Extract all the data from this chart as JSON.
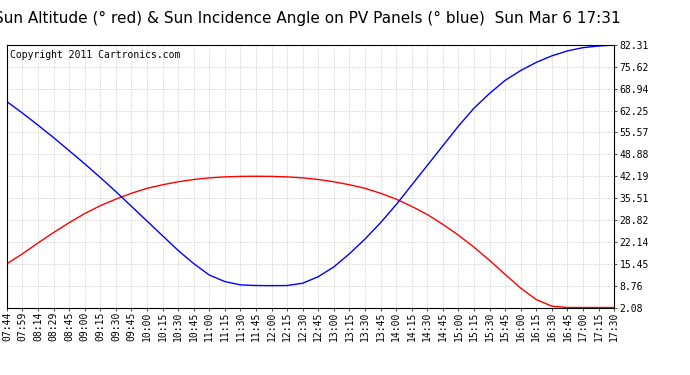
{
  "title": "Sun Altitude (° red) & Sun Incidence Angle on PV Panels (° blue)  Sun Mar 6 17:31",
  "copyright": "Copyright 2011 Cartronics.com",
  "yticks": [
    2.08,
    8.76,
    15.45,
    22.14,
    28.82,
    35.51,
    42.19,
    48.88,
    55.57,
    62.25,
    68.94,
    75.62,
    82.31
  ],
  "xtick_labels": [
    "07:44",
    "07:59",
    "08:14",
    "08:29",
    "08:45",
    "09:00",
    "09:15",
    "09:30",
    "09:45",
    "10:00",
    "10:15",
    "10:30",
    "10:45",
    "11:00",
    "11:15",
    "11:30",
    "11:45",
    "12:00",
    "12:15",
    "12:30",
    "12:45",
    "13:00",
    "13:15",
    "13:30",
    "13:45",
    "14:00",
    "14:15",
    "14:30",
    "14:45",
    "15:00",
    "15:15",
    "15:30",
    "15:45",
    "16:00",
    "16:15",
    "16:30",
    "16:45",
    "17:00",
    "17:15",
    "17:30"
  ],
  "bg_color": "#ffffff",
  "grid_color": "#c8c8c8",
  "red_color": "#ff0000",
  "blue_color": "#0000ff",
  "title_fontsize": 11,
  "copyright_fontsize": 7,
  "tick_fontsize": 7,
  "red_data": [
    15.45,
    18.5,
    21.8,
    25.0,
    28.0,
    30.8,
    33.2,
    35.2,
    37.0,
    38.5,
    39.6,
    40.5,
    41.2,
    41.7,
    42.0,
    42.15,
    42.19,
    42.15,
    42.0,
    41.7,
    41.2,
    40.5,
    39.6,
    38.5,
    37.0,
    35.2,
    33.0,
    30.5,
    27.5,
    24.2,
    20.5,
    16.5,
    12.2,
    8.0,
    4.5,
    2.5,
    2.08,
    2.08,
    2.08,
    2.08
  ],
  "blue_data": [
    65.0,
    61.5,
    57.8,
    54.0,
    50.0,
    46.0,
    41.8,
    37.5,
    33.0,
    28.5,
    24.0,
    19.5,
    15.5,
    12.0,
    10.0,
    9.0,
    8.8,
    8.76,
    8.8,
    9.5,
    11.5,
    14.5,
    18.5,
    23.0,
    28.0,
    33.5,
    39.5,
    45.5,
    51.5,
    57.5,
    63.0,
    67.5,
    71.5,
    74.5,
    77.0,
    79.0,
    80.5,
    81.5,
    82.0,
    82.31
  ]
}
